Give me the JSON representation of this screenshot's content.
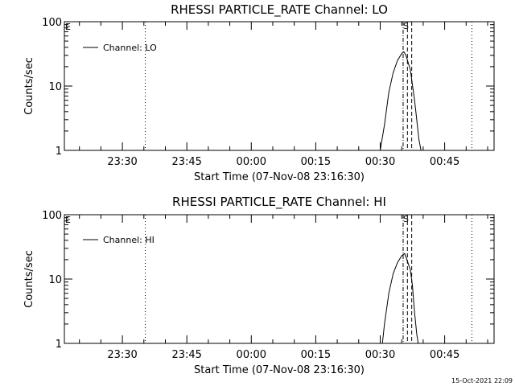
{
  "footer_timestamp": "15-Oct-2021 22:09",
  "chart_data": [
    {
      "type": "line",
      "title": "RHESSI PARTICLE_RATE Channel: LO",
      "xlabel": "Start Time (07-Nov-08 23:16:30)",
      "ylabel": "Counts/sec",
      "yscale": "log",
      "xlim": [
        "23:16:30",
        "00:56:30"
      ],
      "ylim": [
        1,
        100
      ],
      "x_ticks": [
        "23:30",
        "23:45",
        "00:00",
        "00:15",
        "00:30",
        "00:45"
      ],
      "y_ticks": [
        "1",
        "10",
        "100"
      ],
      "grid": false,
      "legend": {
        "position": "top-left",
        "entries": [
          "Channel: LO"
        ]
      },
      "annotations": [
        "E",
        "S"
      ],
      "series": [
        {
          "name": "Channel: LO",
          "x": [
            "00:30:00",
            "00:31:00",
            "00:32:00",
            "00:33:00",
            "00:34:00",
            "00:35:00",
            "00:35:30",
            "00:36:00",
            "00:37:00",
            "00:38:00",
            "00:38:30",
            "00:39:00",
            "00:39:30"
          ],
          "y": [
            1,
            2.5,
            8,
            16,
            25,
            32,
            34,
            30,
            18,
            6,
            3,
            1.5,
            1
          ]
        }
      ],
      "vertical_lines": [
        {
          "x": "23:35:20",
          "style": "dotted"
        },
        {
          "x": "00:35:20",
          "style": "dash-dot"
        },
        {
          "x": "00:36:20",
          "style": "dashed"
        },
        {
          "x": "00:37:20",
          "style": "dashed"
        },
        {
          "x": "00:51:20",
          "style": "dotted"
        }
      ]
    },
    {
      "type": "line",
      "title": "RHESSI PARTICLE_RATE Channel: HI",
      "xlabel": "Start Time (07-Nov-08 23:16:30)",
      "ylabel": "Counts/sec",
      "yscale": "log",
      "xlim": [
        "23:16:30",
        "00:56:30"
      ],
      "ylim": [
        1,
        100
      ],
      "x_ticks": [
        "23:30",
        "23:45",
        "00:00",
        "00:15",
        "00:30",
        "00:45"
      ],
      "y_ticks": [
        "1",
        "10",
        "100"
      ],
      "grid": false,
      "legend": {
        "position": "top-left",
        "entries": [
          "Channel: HI"
        ]
      },
      "annotations": [
        "E",
        "S"
      ],
      "series": [
        {
          "name": "Channel: HI",
          "x": [
            "00:30:30",
            "00:31:00",
            "00:32:00",
            "00:33:00",
            "00:34:00",
            "00:35:00",
            "00:35:40",
            "00:36:00",
            "00:37:00",
            "00:37:30",
            "00:38:00",
            "00:38:30",
            "00:38:50"
          ],
          "y": [
            1,
            2,
            6,
            12,
            18,
            23,
            25,
            22,
            14,
            8,
            3,
            1.4,
            1
          ]
        }
      ],
      "vertical_lines": [
        {
          "x": "23:35:20",
          "style": "dotted"
        },
        {
          "x": "00:35:20",
          "style": "dash-dot"
        },
        {
          "x": "00:36:20",
          "style": "dashed"
        },
        {
          "x": "00:37:20",
          "style": "dashed"
        },
        {
          "x": "00:51:20",
          "style": "dotted"
        }
      ]
    }
  ]
}
